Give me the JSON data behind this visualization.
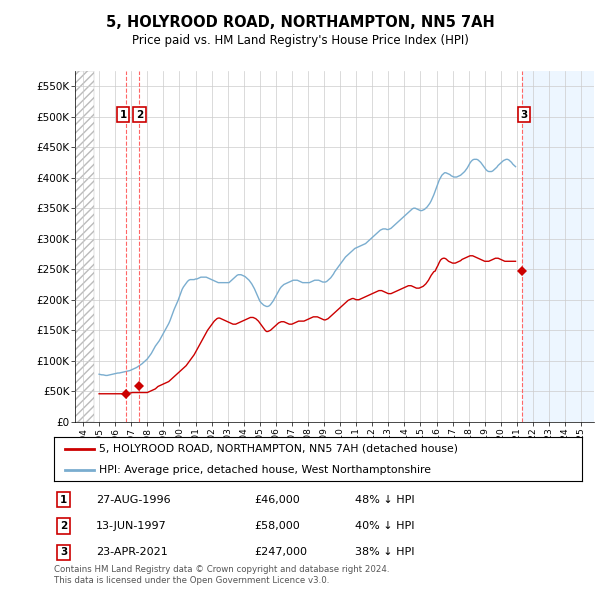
{
  "title": "5, HOLYROOD ROAD, NORTHAMPTON, NN5 7AH",
  "subtitle": "Price paid vs. HM Land Registry's House Price Index (HPI)",
  "ylabel_ticks": [
    "£0",
    "£50K",
    "£100K",
    "£150K",
    "£200K",
    "£250K",
    "£300K",
    "£350K",
    "£400K",
    "£450K",
    "£500K",
    "£550K"
  ],
  "ytick_values": [
    0,
    50000,
    100000,
    150000,
    200000,
    250000,
    300000,
    350000,
    400000,
    450000,
    500000,
    550000
  ],
  "ylim": [
    0,
    575000
  ],
  "xlim_start": 1993.5,
  "xlim_end": 2025.8,
  "hatch_end": 1994.7,
  "hatch_start": 2021.31,
  "sales": [
    {
      "date": "27-AUG-1996",
      "year": 1996.65,
      "price": 46000,
      "label": "1",
      "pct": "48% ↓ HPI"
    },
    {
      "date": "13-JUN-1997",
      "year": 1997.46,
      "price": 58000,
      "label": "2",
      "pct": "40% ↓ HPI"
    },
    {
      "date": "23-APR-2021",
      "year": 2021.31,
      "price": 247000,
      "label": "3",
      "pct": "38% ↓ HPI"
    }
  ],
  "hpi_monthly": {
    "start_year": 1995.0,
    "values": [
      78000,
      77500,
      77000,
      77000,
      76500,
      76000,
      76000,
      76500,
      77000,
      77500,
      78000,
      78500,
      79000,
      79500,
      80000,
      80000,
      80500,
      81000,
      81500,
      82000,
      82500,
      83000,
      83500,
      84000,
      85000,
      86000,
      87000,
      88000,
      89000,
      90500,
      92000,
      93500,
      95000,
      97000,
      99000,
      101000,
      103000,
      106000,
      109000,
      112000,
      116000,
      120000,
      124000,
      127000,
      130000,
      133000,
      137000,
      141000,
      145000,
      149000,
      153000,
      157000,
      161000,
      166000,
      172000,
      178000,
      184000,
      189000,
      194000,
      199000,
      205000,
      211000,
      217000,
      221000,
      224000,
      227000,
      230000,
      232000,
      233000,
      233000,
      233000,
      233000,
      234000,
      234000,
      235000,
      236000,
      237000,
      237000,
      237000,
      237000,
      237000,
      236000,
      235000,
      234000,
      233000,
      232000,
      231000,
      230000,
      229000,
      228000,
      228000,
      228000,
      228000,
      228000,
      228000,
      228000,
      228000,
      228000,
      230000,
      232000,
      234000,
      236000,
      238000,
      240000,
      241000,
      241000,
      241000,
      240000,
      239000,
      238000,
      236000,
      234000,
      232000,
      229000,
      226000,
      222000,
      218000,
      213000,
      208000,
      203000,
      198000,
      195000,
      193000,
      191000,
      190000,
      189000,
      189000,
      190000,
      192000,
      195000,
      198000,
      202000,
      206000,
      210000,
      214000,
      218000,
      221000,
      223000,
      225000,
      226000,
      227000,
      228000,
      229000,
      230000,
      231000,
      232000,
      232000,
      232000,
      232000,
      231000,
      230000,
      229000,
      228000,
      228000,
      228000,
      228000,
      228000,
      228000,
      229000,
      230000,
      231000,
      232000,
      232000,
      232000,
      232000,
      231000,
      230000,
      229000,
      229000,
      229000,
      230000,
      232000,
      234000,
      236000,
      239000,
      242000,
      246000,
      249000,
      252000,
      255000,
      258000,
      261000,
      264000,
      267000,
      270000,
      272000,
      274000,
      276000,
      278000,
      280000,
      282000,
      284000,
      285000,
      286000,
      287000,
      288000,
      289000,
      290000,
      291000,
      292000,
      294000,
      296000,
      298000,
      300000,
      302000,
      304000,
      306000,
      308000,
      310000,
      312000,
      314000,
      315000,
      316000,
      316000,
      316000,
      315000,
      315000,
      316000,
      317000,
      319000,
      321000,
      323000,
      325000,
      327000,
      329000,
      331000,
      333000,
      335000,
      337000,
      339000,
      341000,
      343000,
      345000,
      347000,
      349000,
      350000,
      350000,
      349000,
      348000,
      347000,
      346000,
      346000,
      347000,
      348000,
      350000,
      352000,
      355000,
      358000,
      362000,
      367000,
      372000,
      378000,
      384000,
      390000,
      396000,
      400000,
      404000,
      406000,
      408000,
      408000,
      407000,
      406000,
      405000,
      403000,
      402000,
      401000,
      401000,
      401000,
      402000,
      403000,
      404000,
      406000,
      408000,
      410000,
      413000,
      416000,
      420000,
      424000,
      427000,
      429000,
      430000,
      430000,
      430000,
      429000,
      427000,
      425000,
      422000,
      419000,
      416000,
      413000,
      411000,
      410000,
      410000,
      410000,
      411000,
      413000,
      415000,
      417000,
      420000,
      422000,
      424000,
      426000,
      428000,
      429000,
      430000,
      430000,
      429000,
      427000,
      425000,
      422000,
      420000,
      418000
    ]
  },
  "red_monthly": {
    "start_year": 1995.0,
    "values": [
      46000,
      46000,
      46000,
      46000,
      46000,
      46000,
      46000,
      46000,
      46000,
      46000,
      46000,
      46000,
      46000,
      46000,
      46000,
      46000,
      46000,
      46000,
      46000,
      46000,
      46000,
      46400,
      46800,
      47200,
      47600,
      48000,
      48000,
      48000,
      48000,
      48000,
      48000,
      48000,
      48000,
      48000,
      48000,
      48000,
      48000,
      49000,
      50000,
      51000,
      52000,
      53000,
      54000,
      56000,
      58000,
      59000,
      60000,
      61000,
      62000,
      63000,
      64000,
      65000,
      66000,
      68000,
      70000,
      72000,
      74000,
      76000,
      78000,
      80000,
      82000,
      84000,
      86000,
      88000,
      90000,
      92000,
      95000,
      98000,
      101000,
      104000,
      107000,
      110000,
      114000,
      118000,
      122000,
      126000,
      130000,
      134000,
      138000,
      142000,
      146000,
      150000,
      153000,
      156000,
      159000,
      162000,
      165000,
      167000,
      169000,
      170000,
      170000,
      169000,
      168000,
      167000,
      166000,
      165000,
      164000,
      163000,
      162000,
      161000,
      160000,
      160000,
      160000,
      161000,
      162000,
      163000,
      164000,
      165000,
      166000,
      167000,
      168000,
      169000,
      170000,
      171000,
      171000,
      171000,
      170000,
      169000,
      167000,
      165000,
      162000,
      159000,
      156000,
      153000,
      150000,
      148000,
      148000,
      149000,
      150000,
      152000,
      154000,
      156000,
      158000,
      160000,
      162000,
      163000,
      164000,
      164000,
      164000,
      163000,
      162000,
      161000,
      160000,
      160000,
      160000,
      161000,
      162000,
      163000,
      164000,
      165000,
      165000,
      165000,
      165000,
      165000,
      166000,
      167000,
      168000,
      169000,
      170000,
      171000,
      172000,
      172000,
      172000,
      172000,
      171000,
      170000,
      169000,
      168000,
      167000,
      167000,
      168000,
      169000,
      171000,
      173000,
      175000,
      177000,
      179000,
      181000,
      183000,
      185000,
      187000,
      189000,
      191000,
      193000,
      195000,
      197000,
      199000,
      200000,
      201000,
      202000,
      202000,
      201000,
      200000,
      200000,
      200000,
      201000,
      202000,
      203000,
      204000,
      205000,
      206000,
      207000,
      208000,
      209000,
      210000,
      211000,
      212000,
      213000,
      214000,
      215000,
      215000,
      215000,
      214000,
      213000,
      212000,
      211000,
      210000,
      210000,
      210000,
      211000,
      212000,
      213000,
      214000,
      215000,
      216000,
      217000,
      218000,
      219000,
      220000,
      221000,
      222000,
      223000,
      223000,
      223000,
      222000,
      221000,
      220000,
      219000,
      219000,
      219000,
      220000,
      221000,
      222000,
      224000,
      226000,
      229000,
      232000,
      236000,
      240000,
      243000,
      246000,
      247000,
      252000,
      256000,
      261000,
      265000,
      267000,
      268000,
      268000,
      267000,
      265000,
      263000,
      262000,
      261000,
      260000,
      260000,
      260000,
      261000,
      262000,
      263000,
      264000,
      266000,
      267000,
      268000,
      269000,
      270000,
      271000,
      272000,
      272000,
      272000,
      271000,
      270000,
      269000,
      268000,
      267000,
      266000,
      265000,
      264000,
      263000,
      263000,
      263000,
      263000,
      264000,
      265000,
      266000,
      267000,
      268000,
      268000,
      268000,
      267000,
      266000,
      265000,
      264000,
      263000,
      263000,
      263000,
      263000,
      263000,
      263000,
      263000,
      263000,
      263000
    ]
  },
  "legend_label_red": "5, HOLYROOD ROAD, NORTHAMPTON, NN5 7AH (detached house)",
  "legend_label_blue": "HPI: Average price, detached house, West Northamptonshire",
  "footer": "Contains HM Land Registry data © Crown copyright and database right 2024.\nThis data is licensed under the Open Government Licence v3.0.",
  "red_color": "#cc0000",
  "blue_color": "#7aadcf",
  "grid_color": "#cccccc",
  "vline_color": "#ff6666",
  "box_color": "#cc0000",
  "background_color": "#ffffff",
  "shade_color": "#ddeeff"
}
